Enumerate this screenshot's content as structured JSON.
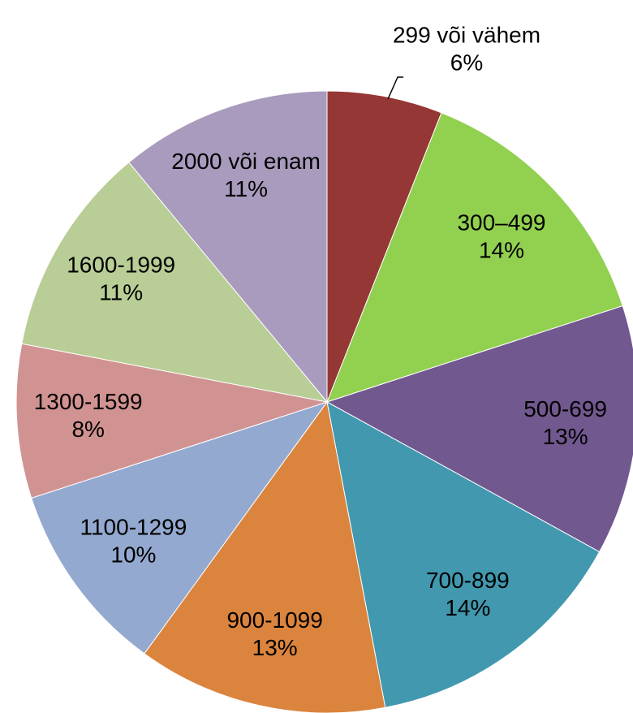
{
  "chart_data": {
    "type": "pie",
    "categories": [
      "299 või vähem",
      "300–499",
      "500-699",
      "700-899",
      "900-1099",
      "1100-1299",
      "1300-1599",
      "1600-1999",
      "2000 või enam"
    ],
    "values": [
      6,
      14,
      13,
      14,
      13,
      10,
      8,
      11,
      11
    ],
    "value_labels": [
      "6%",
      "14%",
      "13%",
      "14%",
      "13%",
      "10%",
      "8%",
      "11%",
      "11%"
    ],
    "colors": [
      "#953735",
      "#92d050",
      "#71588f",
      "#4198af",
      "#db843d",
      "#93a9cf",
      "#d19392",
      "#b9cd96",
      "#a99bbd"
    ]
  }
}
